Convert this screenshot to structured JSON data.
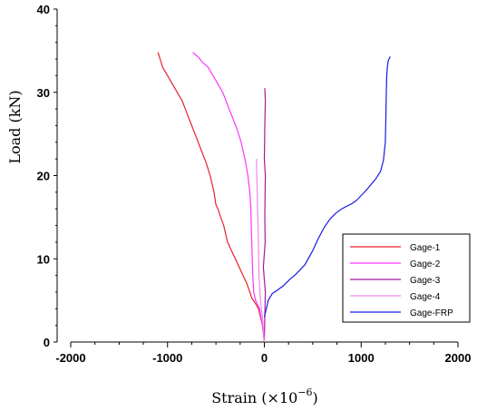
{
  "chart_data": {
    "type": "line",
    "title": "",
    "xlabel": "Strain (×10",
    "xlabel_exp": "−6",
    "xlabel_close": ")",
    "ylabel": "Load (kN)",
    "xlim": [
      -2000,
      2000
    ],
    "ylim": [
      0,
      40
    ],
    "xticks": [
      -2000,
      -1000,
      0,
      1000,
      2000
    ],
    "yticks": [
      0,
      10,
      20,
      30,
      40
    ],
    "xtick_labels": [
      "-2000",
      "-1000",
      "0",
      "1000",
      "2000"
    ],
    "ytick_labels": [
      "0",
      "10",
      "20",
      "30",
      "40"
    ],
    "grid": false,
    "legend_position": "lower-right",
    "series": [
      {
        "name": "Gage-1",
        "color": "#e8202a",
        "x": [
          0,
          -20,
          -60,
          -100,
          -130,
          -150,
          -180,
          -220,
          -260,
          -300,
          -340,
          -380,
          -420,
          -460,
          -480,
          -500,
          -520,
          -560,
          -600,
          -650,
          -700,
          -750,
          -800,
          -850,
          -900,
          -950,
          -1000,
          -1050,
          -1090,
          -1100
        ],
        "y": [
          0,
          2,
          4,
          4.8,
          5.3,
          6,
          7,
          8,
          9,
          10,
          11,
          12,
          14,
          15.3,
          16,
          16.5,
          18,
          20,
          21.5,
          23,
          24.5,
          26,
          27.5,
          29,
          30,
          31,
          32,
          33,
          34.5,
          34.8
        ]
      },
      {
        "name": "Gage-2",
        "color": "#ff33ff",
        "x": [
          0,
          -20,
          -50,
          -90,
          -110,
          -120,
          -125,
          -130,
          -135,
          -140,
          -150,
          -170,
          -200,
          -240,
          -280,
          -330,
          -380,
          -430,
          -480,
          -530,
          -580,
          -630,
          -680,
          -720,
          -740
        ],
        "y": [
          0,
          2,
          4,
          5,
          6,
          8,
          10,
          12,
          14,
          16,
          18,
          20,
          22,
          24,
          25.5,
          27,
          28.5,
          30,
          31,
          32,
          33,
          33.5,
          34.2,
          34.6,
          34.8
        ]
      },
      {
        "name": "Gage-3",
        "color": "#a8189a",
        "x": [
          0,
          5,
          10,
          -10,
          8,
          5,
          10,
          0,
          5,
          10,
          5
        ],
        "y": [
          0,
          3,
          6,
          9,
          12,
          15,
          20,
          22,
          26,
          29,
          30.5
        ]
      },
      {
        "name": "Gage-4",
        "color": "#ee88ee",
        "x": [
          0,
          -20,
          -40,
          -55,
          -60,
          -65,
          -70,
          -75,
          -80,
          -80
        ],
        "y": [
          0,
          3,
          5,
          8,
          11,
          14,
          16,
          19,
          21,
          22
        ]
      },
      {
        "name": "Gage-FRP",
        "color": "#1a1ae6",
        "x": [
          0,
          40,
          80,
          130,
          200,
          260,
          330,
          420,
          500,
          560,
          620,
          680,
          740,
          800,
          850,
          900,
          950,
          1000,
          1050,
          1100,
          1150,
          1200,
          1230,
          1250,
          1255,
          1260,
          1265,
          1270,
          1280,
          1300
        ],
        "y": [
          3,
          5,
          5.8,
          6.2,
          6.8,
          7.5,
          8.2,
          9.3,
          11,
          12.5,
          13.8,
          14.8,
          15.5,
          16,
          16.3,
          16.6,
          17,
          17.6,
          18.2,
          18.9,
          19.6,
          20.5,
          21.8,
          24,
          27,
          30,
          32,
          33,
          33.8,
          34.3
        ]
      }
    ]
  }
}
